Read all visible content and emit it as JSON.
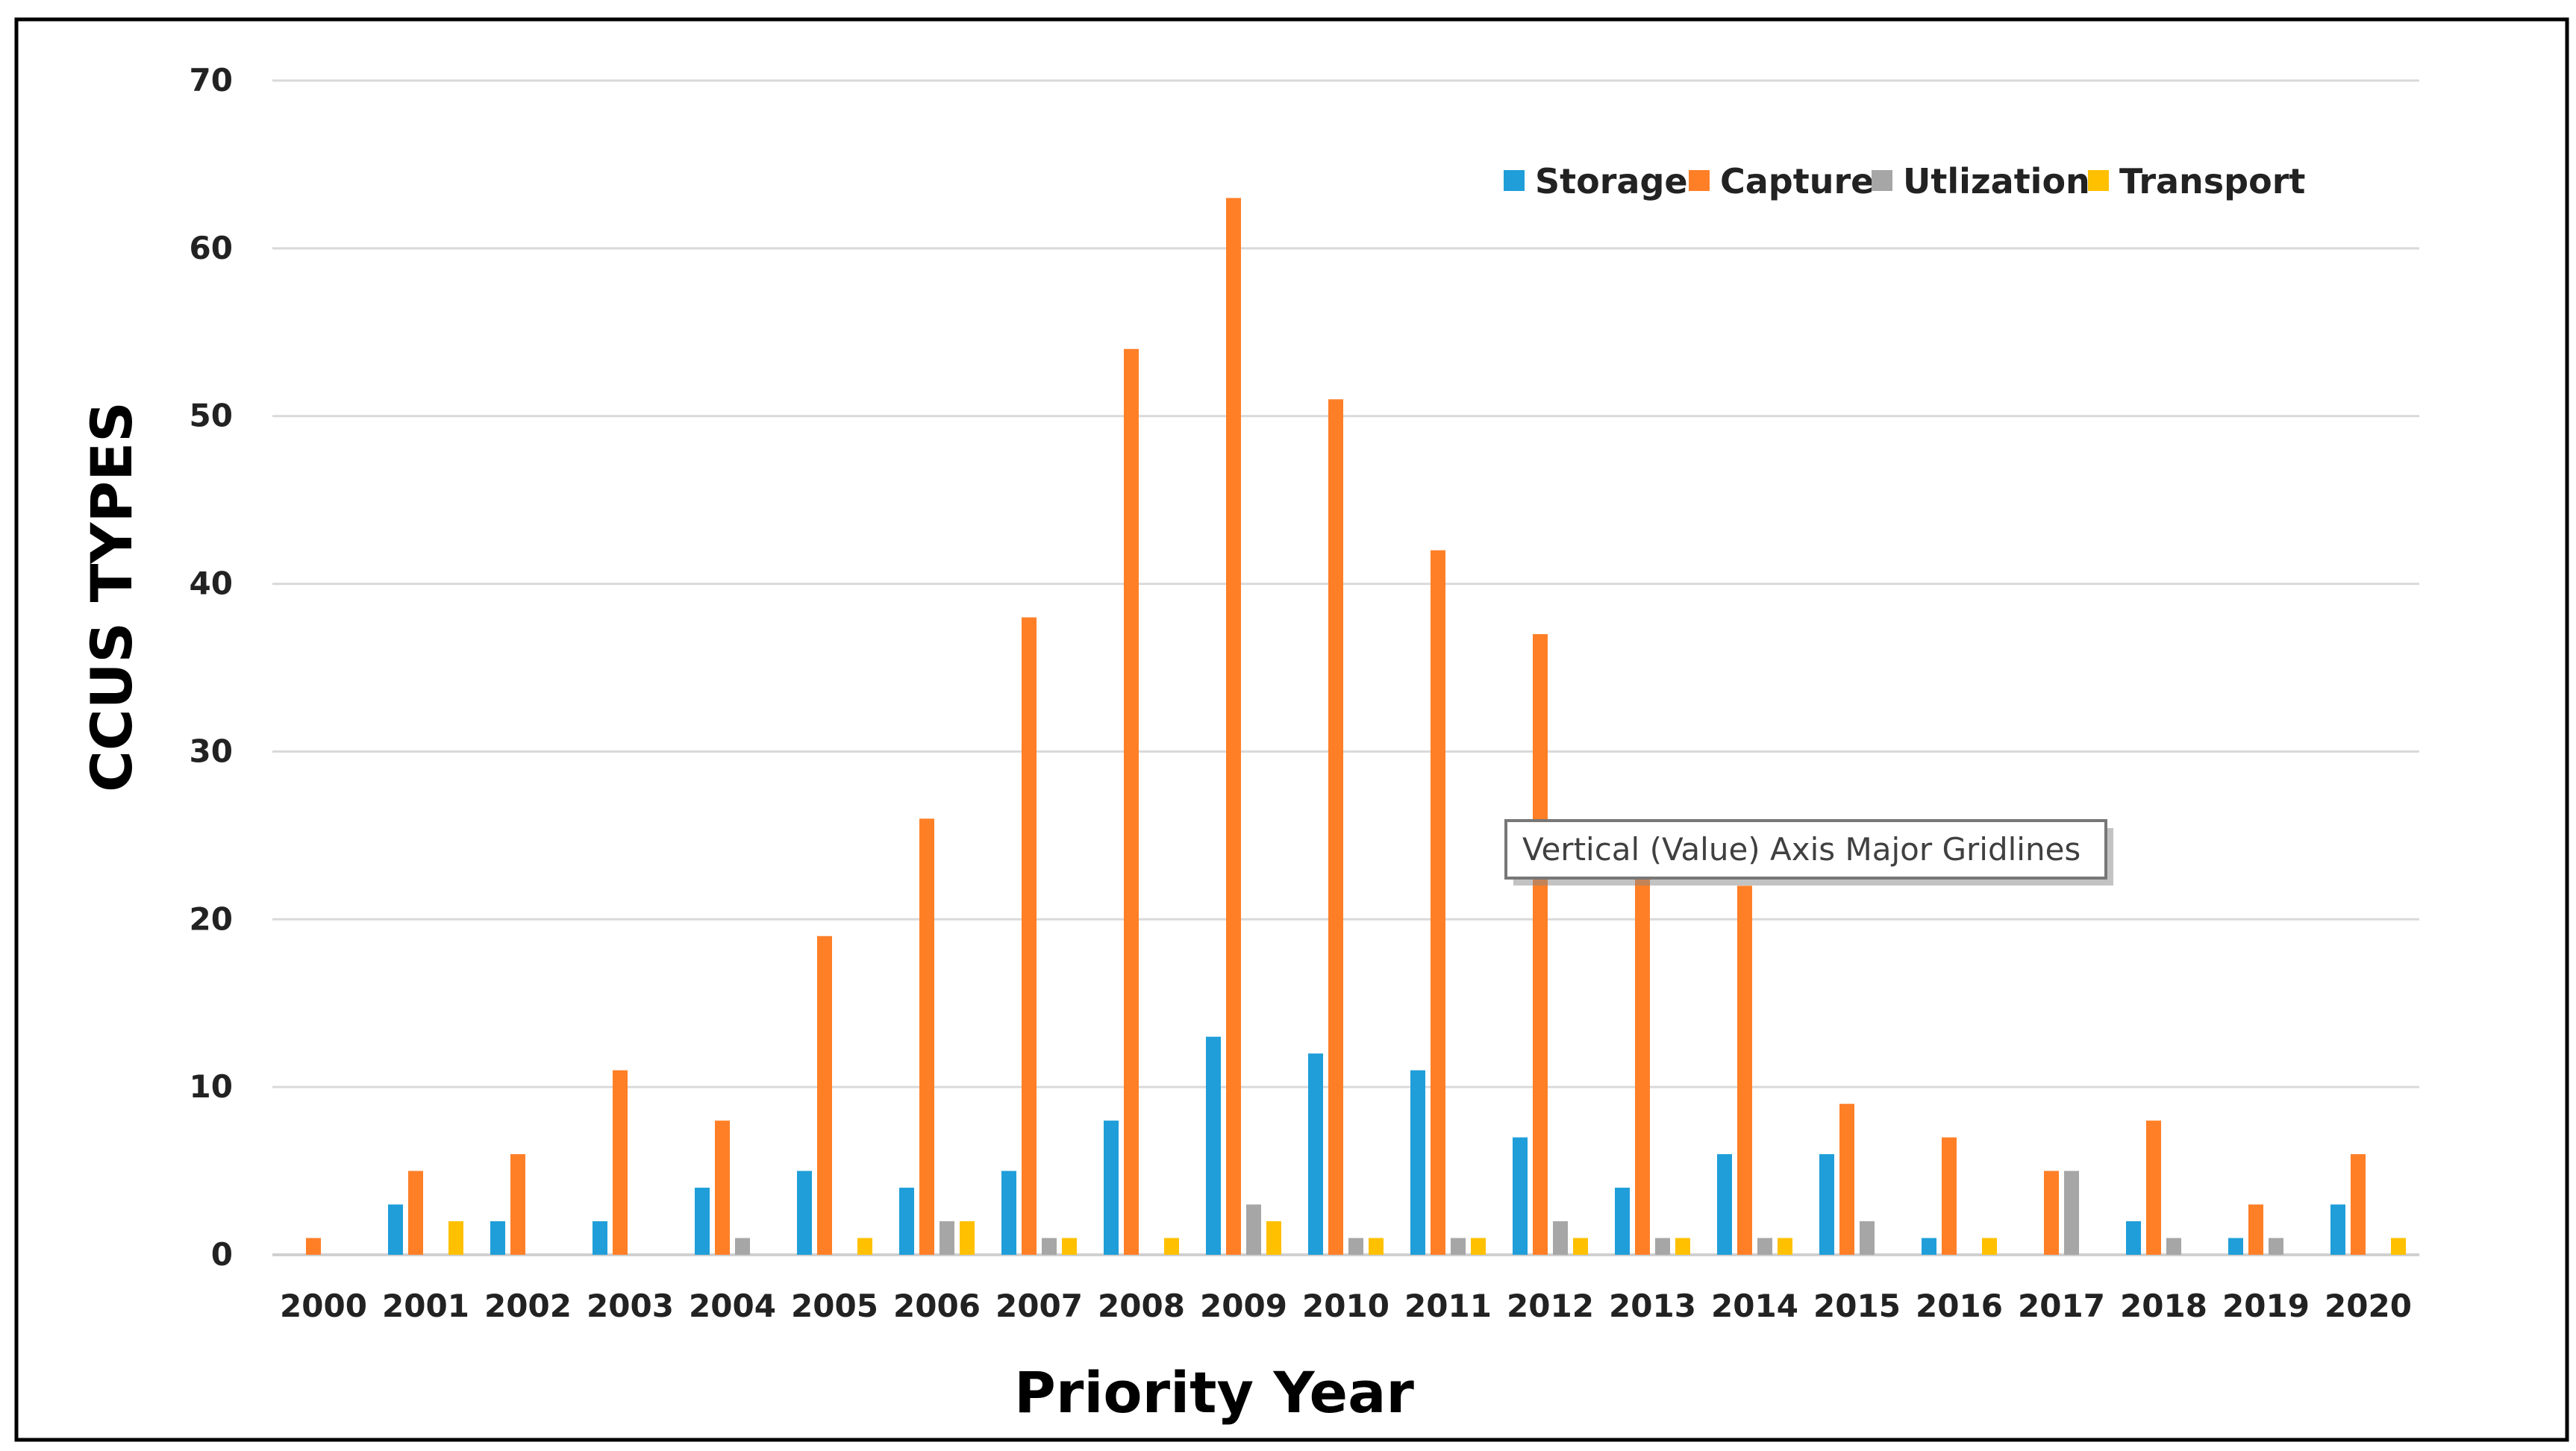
{
  "chart_data": {
    "type": "bar",
    "title": "",
    "xlabel": "Priority Year",
    "ylabel": "CCUS TYPES",
    "ylim": [
      0,
      70
    ],
    "yticks": [
      0,
      10,
      20,
      30,
      40,
      50,
      60,
      70
    ],
    "grid": true,
    "legend_placement": "top-right",
    "categories": [
      "2000",
      "2001",
      "2002",
      "2003",
      "2004",
      "2005",
      "2006",
      "2007",
      "2008",
      "2009",
      "2010",
      "2011",
      "2012",
      "2013",
      "2014",
      "2015",
      "2016",
      "2017",
      "2018",
      "2019",
      "2020"
    ],
    "series": [
      {
        "name": "Storage",
        "color": "#1f9ed9",
        "values": [
          0,
          3,
          2,
          2,
          4,
          5,
          4,
          5,
          8,
          13,
          12,
          11,
          7,
          4,
          6,
          6,
          1,
          0,
          2,
          1,
          3
        ]
      },
      {
        "name": "Capture",
        "color": "#ff7f27",
        "values": [
          1,
          5,
          6,
          11,
          8,
          19,
          26,
          38,
          54,
          63,
          51,
          42,
          37,
          24,
          22,
          9,
          7,
          5,
          8,
          3,
          6
        ]
      },
      {
        "name": "Utlization",
        "color": "#a6a6a6",
        "values": [
          0,
          0,
          0,
          0,
          1,
          0,
          2,
          1,
          0,
          3,
          1,
          1,
          2,
          1,
          1,
          2,
          0,
          5,
          1,
          1,
          0
        ]
      },
      {
        "name": "Transport",
        "color": "#ffc000",
        "values": [
          0,
          2,
          0,
          0,
          0,
          1,
          2,
          1,
          1,
          2,
          1,
          1,
          1,
          1,
          1,
          0,
          1,
          0,
          0,
          0,
          1
        ]
      }
    ]
  },
  "tooltip": {
    "text": "Vertical (Value) Axis Major Gridlines"
  }
}
